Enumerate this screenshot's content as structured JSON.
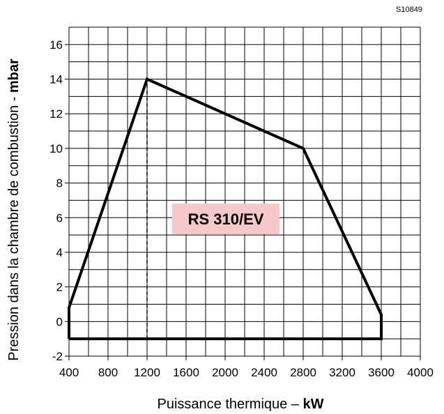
{
  "figure_code": "S10849",
  "chart_data": {
    "type": "area",
    "xlabel": "Puissance thermique –",
    "xlabel_unit": "kW",
    "ylabel": "Pression dans la chambre de combustion -",
    "ylabel_unit": "mbar",
    "xlim": [
      400,
      4000
    ],
    "ylim": [
      -2,
      17
    ],
    "x_ticks": [
      400,
      800,
      1200,
      1600,
      2000,
      2400,
      2800,
      3200,
      3600,
      4000
    ],
    "y_ticks": [
      -2,
      0,
      2,
      4,
      6,
      8,
      10,
      12,
      14,
      16
    ],
    "grid": true,
    "series": [
      {
        "name": "RS 310/EV",
        "points": [
          {
            "x": 400,
            "y": -1
          },
          {
            "x": 400,
            "y": 0.8
          },
          {
            "x": 1200,
            "y": 14
          },
          {
            "x": 2800,
            "y": 10
          },
          {
            "x": 3600,
            "y": 0.4
          },
          {
            "x": 3600,
            "y": -1
          },
          {
            "x": 400,
            "y": -1
          }
        ]
      }
    ],
    "reference_line": {
      "x": 1200,
      "y_from": -1,
      "y_to": 14,
      "style": "dashed"
    },
    "label_colors": {
      "model_label_bg": "#f6c9c9"
    }
  }
}
